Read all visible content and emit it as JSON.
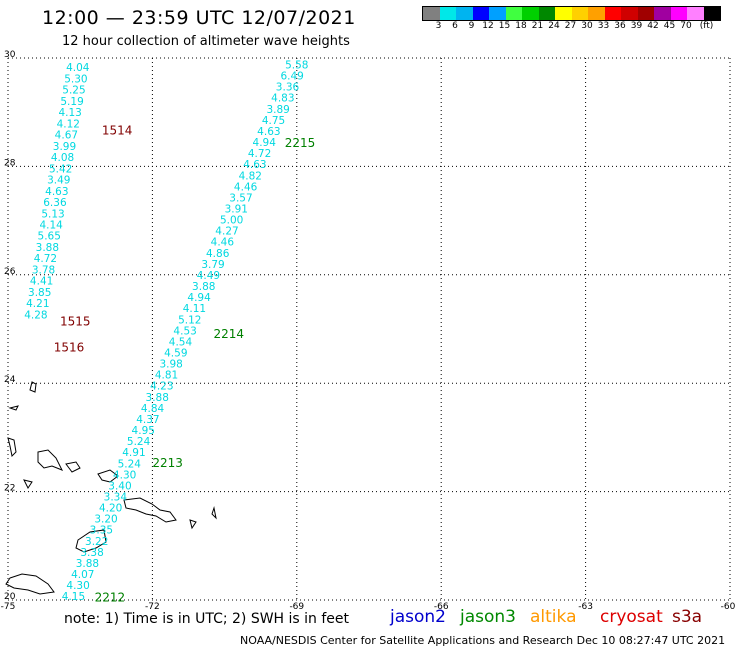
{
  "header": {
    "title": "12:00 — 23:59 UTC 12/07/2021",
    "subtitle": "12 hour collection of altimeter wave heights"
  },
  "colorbar": {
    "colors": [
      "#808080",
      "#00e8e8",
      "#00b4f0",
      "#0000ff",
      "#00a0ff",
      "#40ff40",
      "#00d000",
      "#008800",
      "#ffff00",
      "#ffd000",
      "#ffa000",
      "#ff0000",
      "#d00000",
      "#a00000",
      "#a000a0",
      "#ff00ff",
      "#ff80ff",
      "#000000"
    ],
    "labels": [
      "3",
      "6",
      "9",
      "12",
      "15",
      "18",
      "21",
      "24",
      "27",
      "30",
      "33",
      "36",
      "39",
      "42",
      "45",
      "70",
      "(ft)"
    ]
  },
  "map": {
    "lat_labels": [
      "30",
      "28",
      "26",
      "24",
      "22",
      "20"
    ],
    "lon_labels": [
      "-75",
      "-72",
      "-69",
      "-66",
      "-63",
      "-60"
    ],
    "lat_values": [
      30,
      28,
      26,
      24,
      22,
      20
    ],
    "lon_values": [
      -75,
      -72,
      -69,
      -66,
      -63,
      -60
    ]
  },
  "tracks": [
    {
      "id": "west",
      "start": [
        -73.55,
        29.83
      ],
      "end": [
        -74.42,
        25.27
      ],
      "values": [
        "4.04",
        "5.30",
        "5.25",
        "5.19",
        "4.13",
        "4.12",
        "4.67",
        "3.99",
        "4.08",
        "5.42",
        "3.49",
        "4.63",
        "6.36",
        "5.13",
        "4.14",
        "5.65",
        "3.88",
        "4.72",
        "3.78",
        "4.41",
        "3.85",
        "4.21",
        "4.28"
      ]
    },
    {
      "id": "east",
      "start": [
        -69.0,
        29.88
      ],
      "end": [
        -73.64,
        20.07
      ],
      "values": [
        "5.58",
        "6.49",
        "3.36",
        "4.83",
        "3.89",
        "4.75",
        "4.63",
        "4.94",
        "4.72",
        "4.63",
        "4.82",
        "4.46",
        "3.57",
        "3.91",
        "5.00",
        "4.27",
        "4.46",
        "4.86",
        "3.79",
        "4.49",
        "3.88",
        "4.94",
        "4.11",
        "5.12",
        "4.53",
        "4.54",
        "4.59",
        "3.98",
        "4.81",
        "4.23",
        "3.88",
        "4.84",
        "4.37",
        "4.95",
        "5.24",
        "4.91",
        "5.24",
        "4.30",
        "3.40",
        "3.34",
        "4.20",
        "3.20",
        "3.35",
        "3.22",
        "3.38",
        "3.88",
        "4.07",
        "4.30",
        "4.15"
      ]
    }
  ],
  "pass_labels": [
    {
      "text": "1514",
      "color": "#800000",
      "lon": -73.05,
      "lat": 28.66
    },
    {
      "text": "1515",
      "color": "#800000",
      "lon": -73.92,
      "lat": 25.14
    },
    {
      "text": "1516",
      "color": "#800000",
      "lon": -74.05,
      "lat": 24.66
    },
    {
      "text": "2215",
      "color": "#008000",
      "lon": -69.25,
      "lat": 28.43
    },
    {
      "text": "2214",
      "color": "#008000",
      "lon": -70.73,
      "lat": 24.91
    },
    {
      "text": "2213",
      "color": "#008000",
      "lon": -72.0,
      "lat": 22.53
    },
    {
      "text": "2212",
      "color": "#008000",
      "lon": -73.2,
      "lat": 20.05
    }
  ],
  "footer": {
    "note": "note: 1) Time is in UTC; 2) SWH is in feet",
    "credit": "NOAA/NESDIS Center for Satellite Applications and Research    Dec 10 08:27:47 UTC 2021",
    "satellites": [
      {
        "name": "jason2",
        "color": "#0000cc"
      },
      {
        "name": "jason3",
        "color": "#008800"
      },
      {
        "name": "altika",
        "color": "#ff9900"
      },
      {
        "name": "cryosat",
        "color": "#dd0000"
      },
      {
        "name": "s3a",
        "color": "#880000"
      }
    ]
  },
  "styles": {
    "track_color": "#00d8e0",
    "grid_color": "#000000",
    "land_color": "#000000"
  }
}
